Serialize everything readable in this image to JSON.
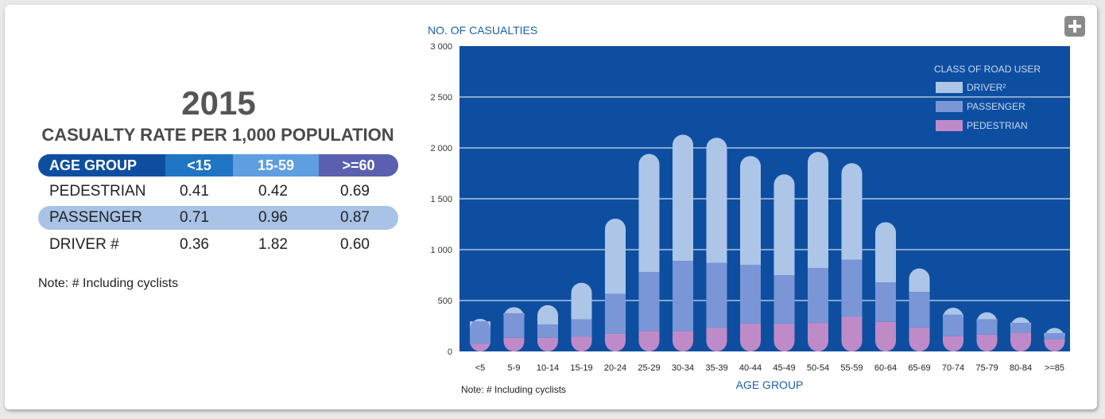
{
  "table": {
    "year": "2015",
    "title": "CASUALTY RATE PER 1,000 POPULATION",
    "headers": [
      "AGE GROUP",
      "<15",
      "15-59",
      ">=60"
    ],
    "rows": [
      {
        "label": "PEDESTRIAN",
        "values": [
          "0.41",
          "0.42",
          "0.69"
        ]
      },
      {
        "label": "PASSENGER",
        "values": [
          "0.71",
          "0.96",
          "0.87"
        ]
      },
      {
        "label": "DRIVER #",
        "values": [
          "0.36",
          "1.82",
          "0.60"
        ]
      }
    ],
    "note": "Note:  #  Including cyclists"
  },
  "colors": {
    "plot_bg": "#0e4ea0",
    "driver": "#adc6e8",
    "passenger": "#7a96d6",
    "pedestrian": "#bf8ac8",
    "title_blue": "#1e5fae",
    "hdr_dark": "#0e4ea0",
    "hdr_mid1": "#1f74c4",
    "hdr_mid2": "#5f9ee0",
    "hdr_end": "#5a5fb0",
    "passenger_row": "#a9c3e7"
  },
  "chart_data": {
    "type": "bar",
    "stacked": true,
    "ylabel": "NO. OF CASUALTIES",
    "xlabel": "AGE GROUP",
    "ylim": [
      0,
      3000
    ],
    "yticks": [
      0,
      500,
      1000,
      1500,
      2000,
      2500,
      3000
    ],
    "ytick_labels": [
      "0",
      "500",
      "1 000",
      "1 500",
      "2 000",
      "2 500",
      "3 000"
    ],
    "grid": true,
    "legend_title": "CLASS OF ROAD USER",
    "legend_position": "top-right",
    "note": "Note:  # Including cyclists",
    "categories": [
      "<5",
      "5-9",
      "10-14",
      "15-19",
      "20-24",
      "25-29",
      "30-34",
      "35-39",
      "40-44",
      "45-49",
      "50-54",
      "55-59",
      "60-64",
      "65-69",
      "70-74",
      "75-79",
      "80-84",
      ">=85"
    ],
    "series": [
      {
        "name": "PEDESTRIAN",
        "values": [
          75,
          135,
          135,
          145,
          175,
          200,
          200,
          230,
          270,
          270,
          280,
          340,
          290,
          235,
          150,
          165,
          180,
          120
        ]
      },
      {
        "name": "PASSENGER",
        "values": [
          220,
          240,
          130,
          170,
          390,
          580,
          690,
          640,
          580,
          480,
          540,
          560,
          390,
          350,
          210,
          150,
          100,
          60
        ]
      },
      {
        "name": "DRIVER²",
        "values": [
          25,
          60,
          190,
          360,
          740,
          1160,
          1240,
          1230,
          1070,
          990,
          1140,
          950,
          590,
          230,
          70,
          70,
          55,
          50
        ]
      }
    ]
  }
}
